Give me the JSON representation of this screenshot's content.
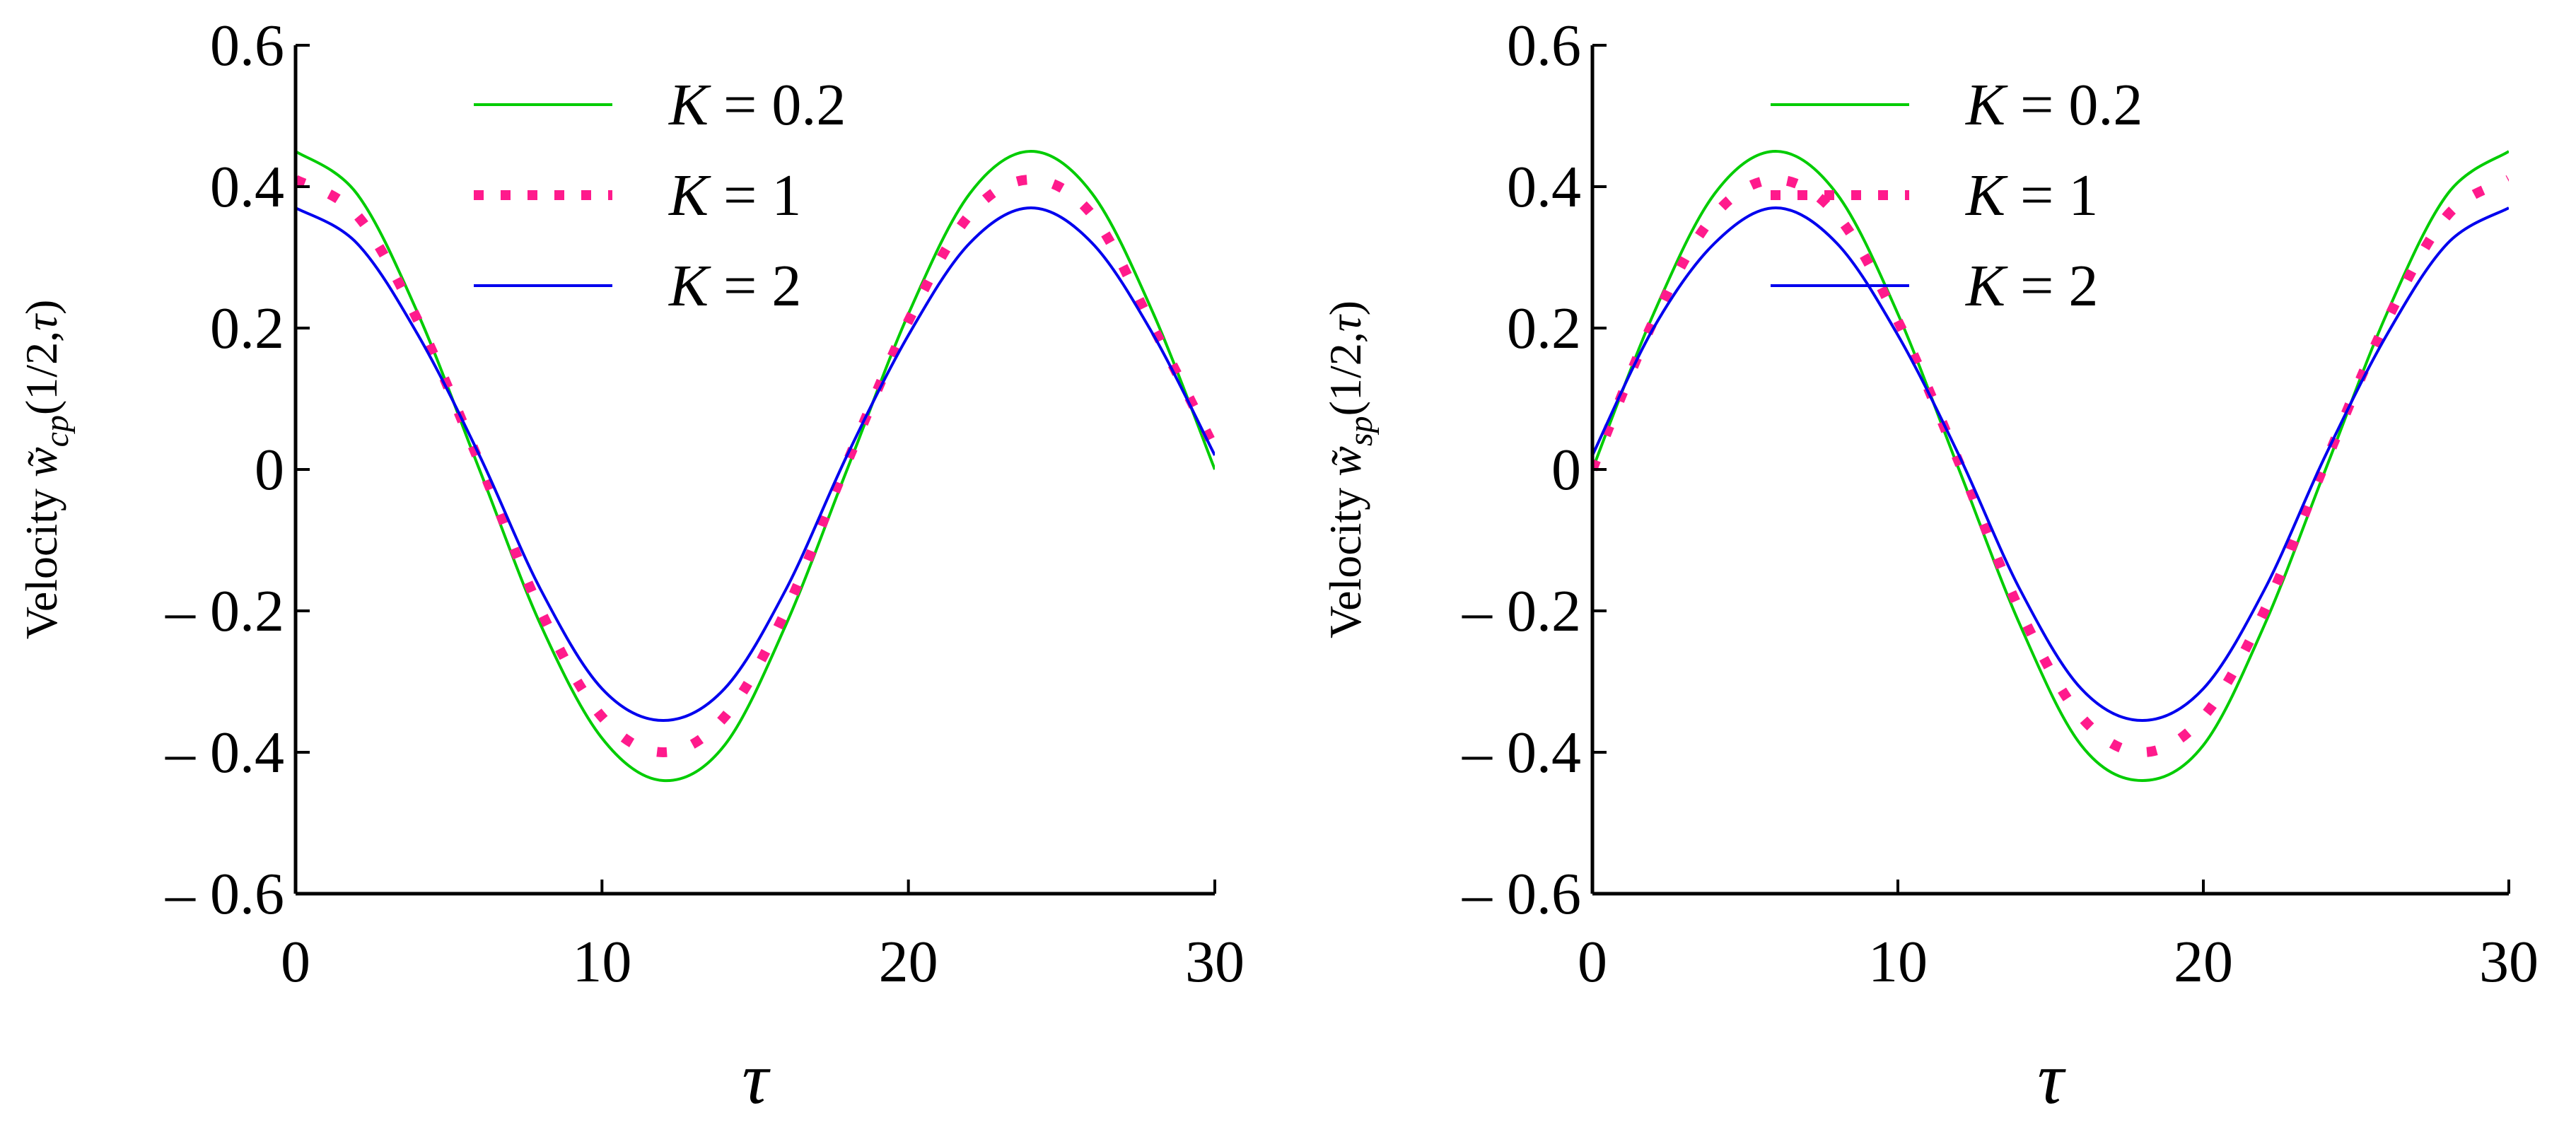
{
  "colors": {
    "axis": "#000000",
    "k02": "#00cc00",
    "k1": "#ff1a8c",
    "k2": "#0000ee"
  },
  "chart_data": [
    {
      "type": "line",
      "id": "left",
      "xlabel": "τ",
      "ylabel": {
        "prefix": "Velocity ",
        "symbol": "w̃",
        "subscript": "cp",
        "args_open": "(1/2,",
        "args_var": "τ",
        "args_close": ")"
      },
      "xlim": [
        0,
        30
      ],
      "ylim": [
        -0.6,
        0.6
      ],
      "xticks": [
        0,
        10,
        20,
        30
      ],
      "yticks": [
        0.6,
        0.4,
        0.2,
        0,
        -0.2,
        -0.4,
        -0.6
      ],
      "x_tick_labels": [
        "0",
        "10",
        "20",
        "30"
      ],
      "y_tick_labels": [
        "0.6",
        "0.4",
        "0.2",
        "0",
        "– 0.2",
        "– 0.4",
        "– 0.6"
      ],
      "series": [
        {
          "name": "K = 0.2",
          "var": "K",
          "value": "0.2",
          "style": "solid",
          "color_key": "k02",
          "x": [
            0,
            2,
            4,
            6,
            8,
            10,
            12,
            14,
            16,
            18,
            20,
            22,
            24,
            26,
            28,
            30
          ],
          "y": [
            0.45,
            0.39,
            0.22,
            0.0,
            -0.22,
            -0.38,
            -0.44,
            -0.39,
            -0.22,
            0.0,
            0.22,
            0.39,
            0.45,
            0.39,
            0.22,
            0.0
          ]
        },
        {
          "name": "K = 1",
          "var": "K",
          "value": "1",
          "style": "dotted",
          "color_key": "k1",
          "x": [
            0,
            2,
            4,
            6,
            8,
            10,
            12,
            14,
            16,
            18,
            20,
            22,
            24,
            26,
            28,
            30
          ],
          "y": [
            0.41,
            0.36,
            0.21,
            0.01,
            -0.2,
            -0.35,
            -0.4,
            -0.35,
            -0.2,
            0.01,
            0.21,
            0.36,
            0.41,
            0.36,
            0.2,
            0.03
          ]
        },
        {
          "name": "K = 2",
          "var": "K",
          "value": "2",
          "style": "solid",
          "color_key": "k2",
          "x": [
            0,
            2,
            4,
            6,
            8,
            10,
            12,
            14,
            16,
            18,
            20,
            22,
            24,
            26,
            28,
            30
          ],
          "y": [
            0.37,
            0.32,
            0.19,
            0.02,
            -0.17,
            -0.31,
            -0.355,
            -0.31,
            -0.17,
            0.02,
            0.19,
            0.32,
            0.37,
            0.32,
            0.19,
            0.02
          ]
        }
      ],
      "legend": "top-right"
    },
    {
      "type": "line",
      "id": "right",
      "xlabel": "τ",
      "ylabel": {
        "prefix": "Velocity ",
        "symbol": "w̃",
        "subscript": "sp",
        "args_open": "(1/2,",
        "args_var": "τ",
        "args_close": ")"
      },
      "xlim": [
        0,
        30
      ],
      "ylim": [
        -0.6,
        0.6
      ],
      "xticks": [
        0,
        10,
        20,
        30
      ],
      "yticks": [
        0.6,
        0.4,
        0.2,
        0,
        -0.2,
        -0.4,
        -0.6
      ],
      "x_tick_labels": [
        "0",
        "10",
        "20",
        "30"
      ],
      "y_tick_labels": [
        "0.6",
        "0.4",
        "0.2",
        "0",
        "– 0.2",
        "– 0.4",
        "– 0.6"
      ],
      "series": [
        {
          "name": "K = 0.2",
          "var": "K",
          "value": "0.2",
          "style": "solid",
          "color_key": "k02",
          "x": [
            0,
            2,
            4,
            6,
            8,
            10,
            12,
            14,
            16,
            18,
            20,
            22,
            24,
            26,
            28,
            30
          ],
          "y": [
            0.0,
            0.22,
            0.39,
            0.45,
            0.39,
            0.22,
            0.0,
            -0.22,
            -0.39,
            -0.44,
            -0.39,
            -0.22,
            0.0,
            0.22,
            0.39,
            0.45
          ]
        },
        {
          "name": "K = 1",
          "var": "K",
          "value": "1",
          "style": "dotted",
          "color_key": "k1",
          "x": [
            0,
            2,
            4,
            6,
            8,
            10,
            12,
            14,
            16,
            18,
            20,
            22,
            24,
            26,
            28,
            30
          ],
          "y": [
            0.0,
            0.21,
            0.36,
            0.41,
            0.36,
            0.21,
            0.01,
            -0.2,
            -0.35,
            -0.4,
            -0.35,
            -0.2,
            0.01,
            0.21,
            0.36,
            0.41
          ]
        },
        {
          "name": "K = 2",
          "var": "K",
          "value": "2",
          "style": "solid",
          "color_key": "k2",
          "x": [
            0,
            2,
            4,
            6,
            8,
            10,
            12,
            14,
            16,
            18,
            20,
            22,
            24,
            26,
            28,
            30
          ],
          "y": [
            0.02,
            0.2,
            0.32,
            0.37,
            0.32,
            0.19,
            0.02,
            -0.17,
            -0.31,
            -0.355,
            -0.31,
            -0.17,
            0.02,
            0.19,
            0.32,
            0.37
          ]
        }
      ],
      "legend": "top-right"
    }
  ]
}
